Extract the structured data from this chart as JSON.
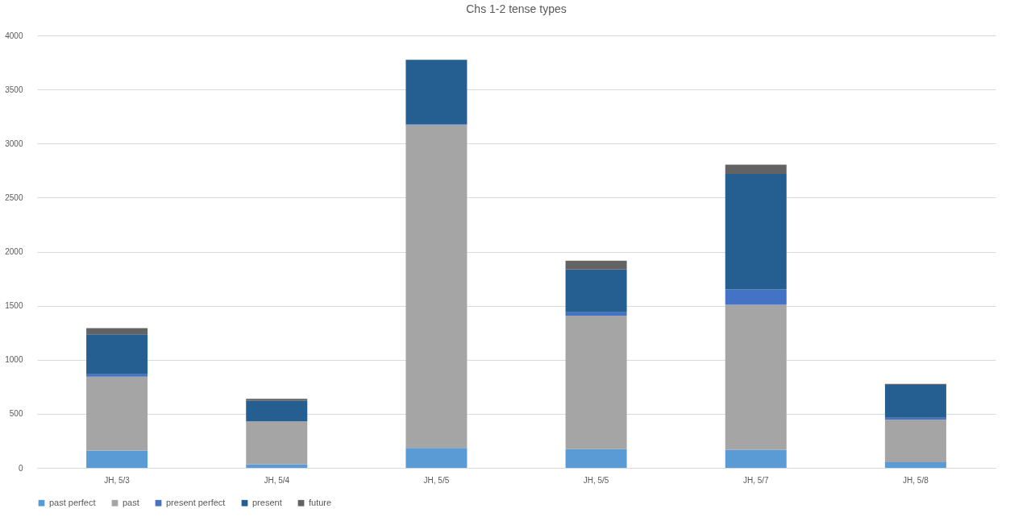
{
  "chart_data": {
    "type": "bar",
    "title": "Chs 1-2 tense types",
    "stacked": true,
    "categories": [
      "JH, 5/3",
      "JH, 5/4",
      "JH, 5/5",
      "JH, 5/5",
      "JH, 5/7",
      "JH, 5/8"
    ],
    "series": [
      {
        "name": "past perfect",
        "color": "#5b9bd5",
        "values": [
          160,
          33,
          185,
          174,
          168,
          52
        ]
      },
      {
        "name": "past",
        "color": "#a5a5a5",
        "values": [
          683,
          397,
          2987,
          1233,
          1340,
          394
        ]
      },
      {
        "name": "present perfect",
        "color": "#4472c4",
        "values": [
          23,
          null,
          5,
          33,
          141,
          18
        ]
      },
      {
        "name": "present",
        "color": "#255e91",
        "values": [
          369,
          191,
          597,
          394,
          1070,
          304
        ]
      },
      {
        "name": "future",
        "color": "#636363",
        "values": [
          57,
          17,
          null,
          83,
          85,
          8
        ]
      }
    ],
    "ylim": [
      0,
      4000
    ],
    "yticks": [
      0,
      500,
      1000,
      1500,
      2000,
      2500,
      3000,
      3500,
      4000
    ],
    "grid": "y",
    "legend": "bottom"
  }
}
